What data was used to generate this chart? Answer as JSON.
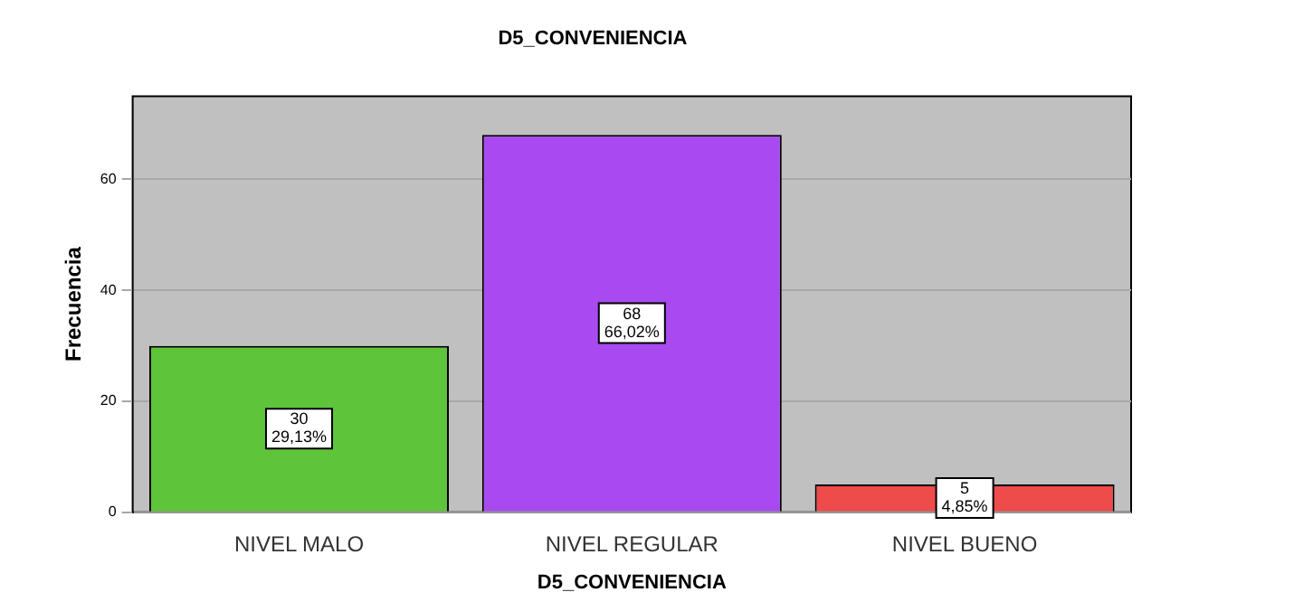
{
  "chart_data": {
    "type": "bar",
    "title": "D5_CONVENIENCIA",
    "xlabel": "D5_CONVENIENCIA",
    "ylabel": "Frecuencia",
    "categories": [
      "NIVEL MALO",
      "NIVEL REGULAR",
      "NIVEL BUENO"
    ],
    "values": [
      30,
      68,
      5
    ],
    "colors": [
      "#5ec43a",
      "#a84af0",
      "#ee4b4b"
    ],
    "value_labels": [
      "30\n29,13%",
      "68\n66,02%",
      "5\n4,85%"
    ],
    "ylim": [
      0,
      75
    ],
    "yticks": [
      0,
      20,
      40,
      60
    ],
    "grid": "y",
    "legend": false
  }
}
